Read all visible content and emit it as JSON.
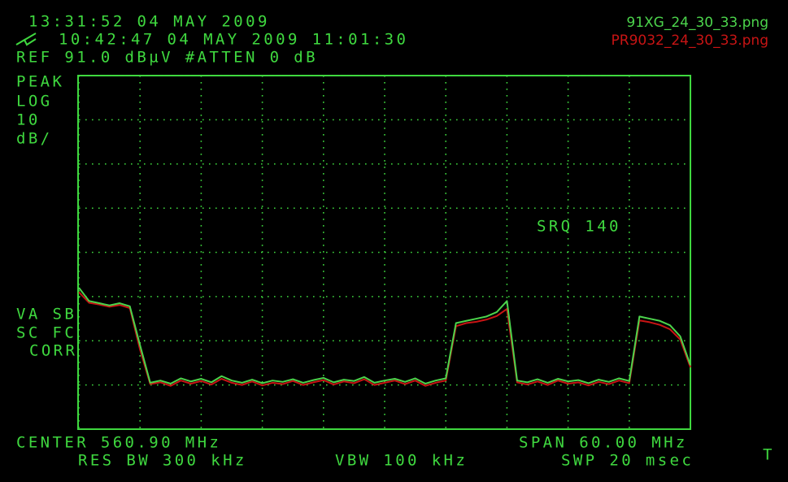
{
  "chart_data": {
    "type": "line",
    "timestamp": "13:31:52  04 MAY 2009",
    "recall_line": "10:42:47  04 MAY 2009 11:01:30",
    "ref_line": "REF 91.0 dBµV #ATTEN 0 dB",
    "scale_labels": [
      "PEAK",
      "LOG",
      "10",
      "dB/"
    ],
    "srq": "SRQ 140",
    "correction_labels": [
      "VA SB",
      "SC FC",
      "CORR"
    ],
    "center": "CENTER 560.90 MHz",
    "span": "SPAN 60.00 MHz",
    "res_bw": "RES BW 300 kHz",
    "vbw": "VBW 100 kHz",
    "sweep": "SWP 20 msec",
    "trigger": "T",
    "legend": "upper right",
    "grid": true,
    "xlim": [
      530.9,
      590.9
    ],
    "xticks": [
      530.9,
      536.9,
      542.9,
      548.9,
      554.9,
      560.9,
      566.9,
      572.9,
      578.9,
      584.9,
      590.9
    ],
    "ylim": [
      11,
      91
    ],
    "yticks": [
      11,
      21,
      31,
      41,
      51,
      61,
      71,
      81,
      91
    ],
    "x": [
      530.9,
      531.9,
      532.9,
      533.9,
      534.9,
      535.9,
      536.9,
      537.9,
      538.9,
      539.9,
      540.9,
      541.9,
      542.9,
      543.9,
      544.9,
      545.9,
      546.9,
      547.9,
      548.9,
      549.9,
      550.9,
      551.9,
      552.9,
      553.9,
      554.9,
      555.9,
      556.9,
      557.9,
      558.9,
      559.9,
      560.9,
      561.9,
      562.9,
      563.9,
      564.9,
      565.9,
      566.9,
      567.9,
      568.9,
      569.9,
      570.9,
      571.9,
      572.9,
      573.9,
      574.9,
      575.9,
      576.9,
      577.9,
      578.9,
      579.9,
      580.9,
      581.9,
      582.9,
      583.9,
      584.9,
      585.9,
      586.9,
      587.9,
      588.9,
      589.9,
      590.9
    ],
    "series": [
      {
        "name": "PR9032_24_30_33.png",
        "color": "#c81414",
        "values": [
          42,
          39.6,
          39.2,
          38.7,
          39.1,
          38.4,
          29,
          21.2,
          21.6,
          20.8,
          22,
          21.3,
          21.9,
          21.1,
          22.4,
          21.5,
          21,
          21.8,
          20.9,
          21.5,
          21.2,
          21.9,
          21,
          21.6,
          22.1,
          21.1,
          21.8,
          21.4,
          22.3,
          21,
          21.5,
          22,
          21.2,
          22,
          20.8,
          21.5,
          22,
          34.3,
          35,
          35.3,
          35.8,
          36.6,
          38.2,
          21.6,
          21.1,
          21.8,
          21,
          22,
          21.3,
          21.6,
          20.9,
          21.7,
          21.2,
          22,
          21.4,
          35.6,
          35.2,
          34.6,
          33.6,
          31.3,
          25
        ]
      },
      {
        "name": "91XG_24_30_33.png",
        "color": "#4cd44c",
        "values": [
          43,
          40,
          39.5,
          39,
          39.5,
          38.8,
          30,
          21.5,
          22,
          21.3,
          22.5,
          21.8,
          22.4,
          21.6,
          23,
          22,
          21.5,
          22.2,
          21.4,
          22,
          21.7,
          22.3,
          21.5,
          22.1,
          22.6,
          21.6,
          22.2,
          21.9,
          22.8,
          21.5,
          22,
          22.4,
          21.7,
          22.5,
          21.3,
          22,
          22.5,
          35,
          35.5,
          36,
          36.5,
          37.5,
          40,
          22,
          21.6,
          22.3,
          21.5,
          22.4,
          21.8,
          22.1,
          21.4,
          22.2,
          21.7,
          22.5,
          21.9,
          36.5,
          36,
          35.5,
          34.5,
          32,
          25.5
        ]
      }
    ]
  }
}
